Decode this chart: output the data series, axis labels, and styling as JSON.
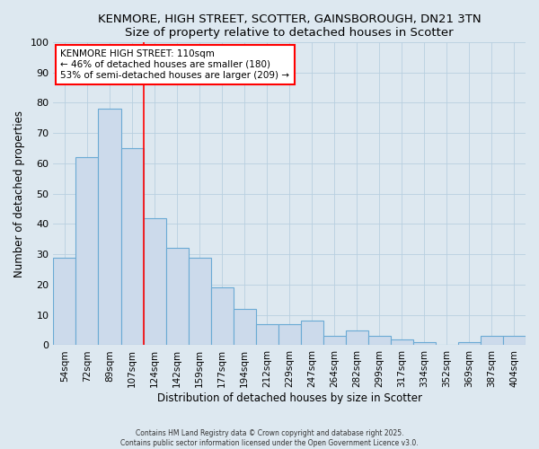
{
  "title1": "KENMORE, HIGH STREET, SCOTTER, GAINSBOROUGH, DN21 3TN",
  "title2": "Size of property relative to detached houses in Scotter",
  "xlabel": "Distribution of detached houses by size in Scotter",
  "ylabel": "Number of detached properties",
  "bin_labels": [
    "54sqm",
    "72sqm",
    "89sqm",
    "107sqm",
    "124sqm",
    "142sqm",
    "159sqm",
    "177sqm",
    "194sqm",
    "212sqm",
    "229sqm",
    "247sqm",
    "264sqm",
    "282sqm",
    "299sqm",
    "317sqm",
    "334sqm",
    "352sqm",
    "369sqm",
    "387sqm",
    "404sqm"
  ],
  "bar_heights": [
    29,
    62,
    78,
    65,
    42,
    32,
    29,
    19,
    12,
    7,
    7,
    8,
    3,
    5,
    3,
    2,
    1,
    0,
    1,
    3,
    3
  ],
  "bar_color": "#ccdaeb",
  "bar_edgecolor": "#6aaad4",
  "grid_color": "#b8cfe0",
  "bg_color": "#dde8f0",
  "red_line_index": 3.5,
  "annotation_text": "KENMORE HIGH STREET: 110sqm\n← 46% of detached houses are smaller (180)\n53% of semi-detached houses are larger (209) →",
  "annotation_box_facecolor": "white",
  "annotation_box_edgecolor": "red",
  "ylim": [
    0,
    100
  ],
  "yticks": [
    0,
    10,
    20,
    30,
    40,
    50,
    60,
    70,
    80,
    90,
    100
  ],
  "footer1": "Contains HM Land Registry data © Crown copyright and database right 2025.",
  "footer2": "Contains public sector information licensed under the Open Government Licence v3.0."
}
